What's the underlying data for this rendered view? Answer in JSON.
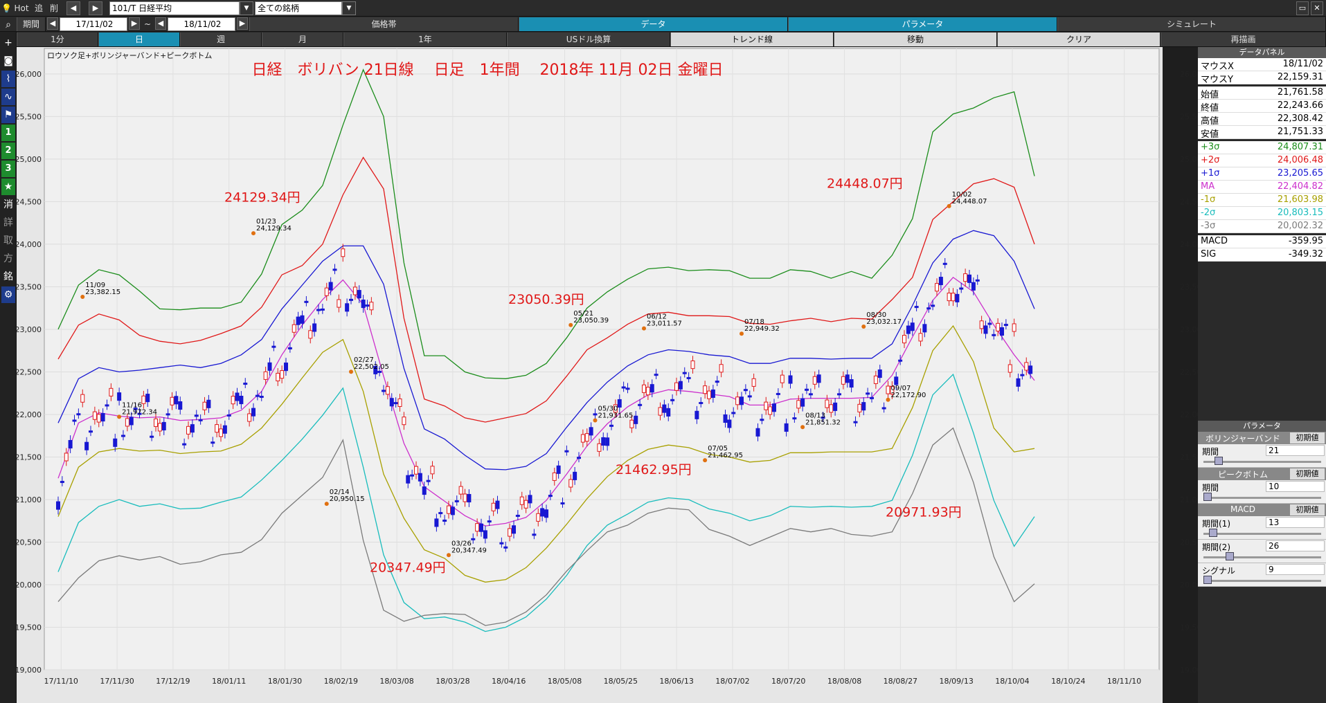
{
  "toolbar": {
    "hot": "Hot",
    "add": "追",
    "del": "削",
    "symbol": "101/T 日経平均",
    "universe": "全ての銘柄"
  },
  "bar2": {
    "period_label": "期間",
    "date_from": "17/11/02",
    "tilde": "~",
    "date_to": "18/11/02",
    "tabs": [
      "価格帯",
      "データ",
      "パラメータ",
      "シミュレート"
    ]
  },
  "bar3": {
    "items": [
      "1分",
      "日",
      "週",
      "月",
      "1年",
      "USドル換算",
      "トレンド線",
      "移動",
      "クリア",
      "再描画"
    ]
  },
  "left_toolbar": {
    "num1": "1",
    "num2": "2",
    "num3": "3",
    "kanji": [
      "消",
      "詳",
      "取",
      "方",
      "銘"
    ]
  },
  "chart_data": {
    "type": "line",
    "title": "日経　ボリバン 21日線　 日足　1年間　 2018年 11月 02日 金曜日",
    "subtitle": "ロウソク足+ボリンジャーバンド+ピークボトム",
    "ylim": [
      19000,
      26300
    ],
    "y_ticks": [
      19000,
      19500,
      20000,
      20500,
      21000,
      21500,
      22000,
      22500,
      23000,
      23500,
      24000,
      24500,
      25000,
      25500,
      26000
    ],
    "x_tick_labels": [
      "17/11/10",
      "17/11/30",
      "17/12/19",
      "18/01/11",
      "18/01/30",
      "18/02/19",
      "18/03/08",
      "18/03/28",
      "18/04/16",
      "18/05/08",
      "18/05/25",
      "18/06/13",
      "18/07/02",
      "18/07/20",
      "18/08/08",
      "18/08/27",
      "18/09/13",
      "18/10/04",
      "18/10/24",
      "18/11/10"
    ],
    "series": [
      {
        "name": "+3σ",
        "color": "#1a8c1a",
        "values": [
          23000,
          23520,
          23700,
          23640,
          23450,
          23240,
          23230,
          23250,
          23250,
          23320,
          23650,
          24230,
          24400,
          24690,
          25400,
          26050,
          25500,
          23780,
          22690,
          22690,
          22500,
          22430,
          22420,
          22460,
          22600,
          22900,
          23250,
          23440,
          23590,
          23710,
          23730,
          23690,
          23700,
          23690,
          23600,
          23600,
          23700,
          23680,
          23600,
          23680,
          23600,
          23870,
          24300,
          25320,
          25530,
          25600,
          25720,
          25790,
          24800
        ]
      },
      {
        "name": "+2σ",
        "color": "#e01818",
        "values": [
          22650,
          23050,
          23180,
          23110,
          22930,
          22860,
          22830,
          22870,
          22950,
          23040,
          23260,
          23640,
          23750,
          24000,
          24580,
          25020,
          24650,
          23130,
          22180,
          22100,
          21960,
          21910,
          21960,
          22010,
          22160,
          22450,
          22760,
          22900,
          23060,
          23180,
          23200,
          23160,
          23160,
          23150,
          23070,
          23060,
          23100,
          23130,
          23090,
          23130,
          23120,
          23350,
          23610,
          24290,
          24500,
          24710,
          24770,
          24670,
          24000
        ]
      },
      {
        "name": "+1σ",
        "color": "#1818d2",
        "values": [
          21900,
          22420,
          22550,
          22500,
          22520,
          22550,
          22580,
          22550,
          22600,
          22700,
          22880,
          23240,
          23520,
          23800,
          23980,
          23980,
          23530,
          22540,
          21830,
          21710,
          21520,
          21360,
          21350,
          21390,
          21540,
          21850,
          22140,
          22380,
          22570,
          22700,
          22760,
          22740,
          22700,
          22680,
          22600,
          22600,
          22660,
          22660,
          22650,
          22660,
          22660,
          22830,
          23280,
          23780,
          24060,
          24160,
          24100,
          23800,
          23240
        ]
      },
      {
        "name": "MA",
        "color": "#cc2fcc",
        "values": [
          21250,
          21900,
          22020,
          21980,
          21960,
          21970,
          21930,
          21940,
          21960,
          22050,
          22270,
          22700,
          23050,
          23350,
          23580,
          23290,
          22450,
          21660,
          21150,
          20980,
          20810,
          20690,
          20720,
          20790,
          20990,
          21300,
          21630,
          21890,
          22090,
          22230,
          22290,
          22270,
          22240,
          22210,
          22110,
          22110,
          22180,
          22190,
          22190,
          22190,
          22200,
          22460,
          22910,
          23340,
          23610,
          23440,
          23050,
          22700,
          22400
        ]
      },
      {
        "name": "-1σ",
        "color": "#a8a000",
        "values": [
          20800,
          21380,
          21560,
          21600,
          21570,
          21580,
          21540,
          21560,
          21570,
          21650,
          21840,
          22120,
          22430,
          22730,
          22880,
          22270,
          21300,
          20780,
          20410,
          20310,
          20110,
          20030,
          20060,
          20200,
          20430,
          20710,
          21010,
          21270,
          21460,
          21590,
          21640,
          21610,
          21530,
          21500,
          21440,
          21460,
          21550,
          21550,
          21560,
          21560,
          21560,
          21600,
          22080,
          22750,
          23040,
          22620,
          21840,
          21560,
          21600
        ]
      },
      {
        "name": "-2σ",
        "color": "#18bcbc",
        "values": [
          20150,
          20730,
          20920,
          21000,
          20920,
          20950,
          20890,
          20900,
          20970,
          21030,
          21230,
          21460,
          21710,
          21990,
          22310,
          21380,
          20350,
          19790,
          19600,
          19620,
          19560,
          19450,
          19500,
          19620,
          19830,
          20110,
          20460,
          20700,
          20830,
          20970,
          21020,
          21000,
          20890,
          20840,
          20750,
          20810,
          20920,
          20910,
          20920,
          20910,
          20920,
          20990,
          21520,
          22230,
          22470,
          21780,
          20990,
          20450,
          20800
        ]
      },
      {
        "name": "-3σ",
        "color": "#7a7a7a",
        "values": [
          19800,
          20080,
          20280,
          20340,
          20290,
          20330,
          20240,
          20270,
          20350,
          20380,
          20530,
          20840,
          21050,
          21260,
          21700,
          20520,
          19700,
          19570,
          19640,
          19660,
          19650,
          19520,
          19560,
          19680,
          19880,
          20160,
          20400,
          20620,
          20700,
          20840,
          20900,
          20880,
          20650,
          20570,
          20460,
          20560,
          20660,
          20620,
          20660,
          20590,
          20570,
          20620,
          21070,
          21640,
          21840,
          21200,
          20330,
          19800,
          20010
        ]
      }
    ],
    "peak_labels": [
      {
        "text": "11/09",
        "value": "23,382.15"
      },
      {
        "text": "11/16",
        "value": "21,972.34"
      },
      {
        "text": "01/23",
        "value": "24,129.34"
      },
      {
        "text": "02/14",
        "value": "20,950.15"
      },
      {
        "text": "02/27",
        "value": "22,502.05"
      },
      {
        "text": "03/26",
        "value": "20,347.49"
      },
      {
        "text": "05/21",
        "value": "23,050.39"
      },
      {
        "text": "05/30",
        "value": "21,931.65"
      },
      {
        "text": "06/12",
        "value": "23,011.57"
      },
      {
        "text": "07/05",
        "value": "21,462.95"
      },
      {
        "text": "07/18",
        "value": "22,949.32"
      },
      {
        "text": "08/13",
        "value": "21,851.32"
      },
      {
        "text": "08/30",
        "value": "23,032.17"
      },
      {
        "text": "09/07",
        "value": "22,172.90"
      },
      {
        "text": "10/02",
        "value": "24,448.07"
      }
    ],
    "big_labels": [
      "24129.34円",
      "20347.49円",
      "23050.39円",
      "21462.95円",
      "24448.07円",
      "20971.93円"
    ],
    "grid": true
  },
  "data_panel": {
    "title": "データパネル",
    "rows1": [
      {
        "label": "マウスX",
        "value": "18/11/02"
      },
      {
        "label": "マウスY",
        "value": "22,159.31"
      }
    ],
    "rows2": [
      {
        "label": "始値",
        "value": "21,761.58"
      },
      {
        "label": "終値",
        "value": "22,243.66"
      },
      {
        "label": "高値",
        "value": "22,308.42"
      },
      {
        "label": "安値",
        "value": "21,751.33"
      }
    ],
    "rows3": [
      {
        "label": "+3σ",
        "value": "24,807.31",
        "color": "#1a8c1a"
      },
      {
        "label": "+2σ",
        "value": "24,006.48",
        "color": "#e01818"
      },
      {
        "label": "+1σ",
        "value": "23,205.65",
        "color": "#1818d2"
      },
      {
        "label": "MA",
        "value": "22,404.82",
        "color": "#cc2fcc"
      },
      {
        "label": "-1σ",
        "value": "21,603.98",
        "color": "#a8a000"
      },
      {
        "label": "-2σ",
        "value": "20,803.15",
        "color": "#18bcbc"
      },
      {
        "label": "-3σ",
        "value": "20,002.32",
        "color": "#7a7a7a"
      }
    ],
    "rows4": [
      {
        "label": "MACD",
        "value": "-359.95"
      },
      {
        "label": "SIG",
        "value": "-349.32"
      }
    ]
  },
  "param_panel": {
    "title": "パラメータ",
    "groups": [
      {
        "name": "ボリンジャーバンド",
        "reset": "初期値",
        "rows": [
          {
            "label": "期間",
            "value": "21",
            "pos": 0.1
          }
        ]
      },
      {
        "name": "ピークボトム",
        "reset": "初期値",
        "rows": [
          {
            "label": "期間",
            "value": "10",
            "pos": 0.0
          }
        ]
      },
      {
        "name": "MACD",
        "reset": "初期値",
        "rows": [
          {
            "label": "期間(1)",
            "value": "13",
            "pos": 0.05
          },
          {
            "label": "期間(2)",
            "value": "26",
            "pos": 0.2
          },
          {
            "label": "シグナル",
            "value": "9",
            "pos": 0.0
          }
        ]
      }
    ]
  }
}
